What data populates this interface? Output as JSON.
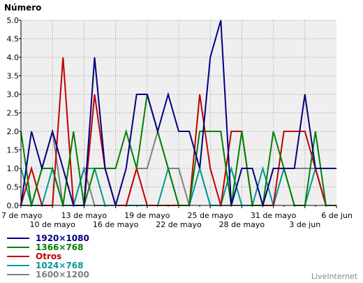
{
  "chart_data": {
    "type": "line",
    "ylabel": "Número",
    "ylim": [
      0,
      5
    ],
    "yticks": [
      "0.0",
      "0.5",
      "1.0",
      "1.5",
      "2.0",
      "2.5",
      "3.0",
      "3.5",
      "4.0",
      "4.5",
      "5.0"
    ],
    "x_day_start": 0,
    "x_day_end": 30,
    "xticks_row1": [
      {
        "day": 0,
        "label": "7 de mayo"
      },
      {
        "day": 6,
        "label": "13 de mayo"
      },
      {
        "day": 12,
        "label": "19 de mayo"
      },
      {
        "day": 18,
        "label": "25 de mayo"
      },
      {
        "day": 24,
        "label": "31 de mayo"
      },
      {
        "day": 30,
        "label": "6 de jun"
      }
    ],
    "xticks_row2": [
      {
        "day": 3,
        "label": "10 de mayo"
      },
      {
        "day": 9,
        "label": "16 de mayo"
      },
      {
        "day": 15,
        "label": "22 de mayo"
      },
      {
        "day": 21,
        "label": "28 de mayo"
      },
      {
        "day": 27,
        "label": "3 de jun"
      }
    ],
    "grid": true,
    "legend_position": "bottom-left",
    "series": [
      {
        "name": "1920×1080",
        "color": "#000080",
        "points": [
          [
            0,
            0
          ],
          [
            1,
            2
          ],
          [
            2,
            1
          ],
          [
            3,
            2
          ],
          [
            4,
            1
          ],
          [
            5,
            0
          ],
          [
            6,
            0
          ],
          [
            7,
            4
          ],
          [
            8,
            1
          ],
          [
            9,
            0
          ],
          [
            10,
            1
          ],
          [
            11,
            3
          ],
          [
            12,
            3
          ],
          [
            13,
            2
          ],
          [
            14,
            3
          ],
          [
            15,
            2
          ],
          [
            16,
            2
          ],
          [
            17,
            1
          ],
          [
            18,
            4
          ],
          [
            19,
            5
          ],
          [
            20,
            0
          ],
          [
            21,
            1
          ],
          [
            22,
            1
          ],
          [
            23,
            0
          ],
          [
            24,
            1
          ],
          [
            25,
            1
          ],
          [
            26,
            1
          ],
          [
            27,
            3
          ],
          [
            28,
            1
          ],
          [
            29,
            1
          ],
          [
            30,
            1
          ]
        ]
      },
      {
        "name": "1366×768",
        "color": "#008000",
        "points": [
          [
            0,
            2
          ],
          [
            1,
            0
          ],
          [
            2,
            1
          ],
          [
            3,
            1
          ],
          [
            4,
            0
          ],
          [
            5,
            2
          ],
          [
            6,
            0
          ],
          [
            7,
            1
          ],
          [
            8,
            1
          ],
          [
            9,
            1
          ],
          [
            10,
            2
          ],
          [
            11,
            1
          ],
          [
            12,
            3
          ],
          [
            13,
            2
          ],
          [
            14,
            1
          ],
          [
            15,
            0
          ],
          [
            16,
            0
          ],
          [
            17,
            2
          ],
          [
            18,
            2
          ],
          [
            19,
            2
          ],
          [
            20,
            0
          ],
          [
            21,
            2
          ],
          [
            22,
            0
          ],
          [
            23,
            0
          ],
          [
            24,
            2
          ],
          [
            25,
            1
          ],
          [
            26,
            0
          ],
          [
            27,
            0
          ],
          [
            28,
            2
          ],
          [
            29,
            0
          ],
          [
            30,
            0
          ]
        ]
      },
      {
        "name": "Otros",
        "color": "#C00000",
        "points": [
          [
            0,
            0
          ],
          [
            1,
            1
          ],
          [
            2,
            0
          ],
          [
            3,
            0
          ],
          [
            4,
            4
          ],
          [
            5,
            0
          ],
          [
            6,
            0
          ],
          [
            7,
            3
          ],
          [
            8,
            1
          ],
          [
            9,
            0
          ],
          [
            10,
            0
          ],
          [
            11,
            1
          ],
          [
            12,
            0
          ],
          [
            13,
            0
          ],
          [
            14,
            0
          ],
          [
            15,
            0
          ],
          [
            16,
            0
          ],
          [
            17,
            3
          ],
          [
            18,
            1
          ],
          [
            19,
            0
          ],
          [
            20,
            2
          ],
          [
            21,
            2
          ],
          [
            22,
            0
          ],
          [
            23,
            0
          ],
          [
            24,
            0
          ],
          [
            25,
            2
          ],
          [
            26,
            2
          ],
          [
            27,
            2
          ],
          [
            28,
            1
          ],
          [
            29,
            0
          ],
          [
            30,
            0
          ]
        ]
      },
      {
        "name": "1024×768",
        "color": "#009999",
        "points": [
          [
            0,
            1
          ],
          [
            1,
            0
          ],
          [
            2,
            0
          ],
          [
            3,
            1
          ],
          [
            4,
            0
          ],
          [
            5,
            0
          ],
          [
            6,
            1
          ],
          [
            7,
            1
          ],
          [
            8,
            0
          ],
          [
            9,
            0
          ],
          [
            10,
            0
          ],
          [
            11,
            0
          ],
          [
            12,
            0
          ],
          [
            13,
            0
          ],
          [
            14,
            1
          ],
          [
            15,
            0
          ],
          [
            16,
            0
          ],
          [
            17,
            1
          ],
          [
            18,
            0
          ],
          [
            19,
            0
          ],
          [
            20,
            1
          ],
          [
            21,
            0
          ],
          [
            22,
            0
          ],
          [
            23,
            1
          ],
          [
            24,
            0
          ],
          [
            25,
            1
          ],
          [
            26,
            0
          ],
          [
            27,
            0
          ],
          [
            28,
            1
          ],
          [
            29,
            0
          ],
          [
            30,
            0
          ]
        ]
      },
      {
        "name": "1600×1200",
        "color": "#808080",
        "points": [
          [
            0,
            0
          ],
          [
            1,
            0
          ],
          [
            2,
            1
          ],
          [
            3,
            2
          ],
          [
            4,
            0
          ],
          [
            5,
            0
          ],
          [
            6,
            1
          ],
          [
            7,
            0
          ],
          [
            8,
            0
          ],
          [
            9,
            0
          ],
          [
            10,
            0
          ],
          [
            11,
            1
          ],
          [
            12,
            1
          ],
          [
            13,
            2
          ],
          [
            14,
            1
          ],
          [
            15,
            1
          ],
          [
            16,
            0
          ],
          [
            17,
            1
          ],
          [
            18,
            0
          ],
          [
            19,
            0
          ],
          [
            20,
            0
          ],
          [
            21,
            0
          ],
          [
            22,
            0
          ],
          [
            23,
            0
          ],
          [
            24,
            0
          ],
          [
            25,
            1
          ],
          [
            26,
            1
          ],
          [
            27,
            1
          ],
          [
            28,
            1
          ],
          [
            29,
            0
          ],
          [
            30,
            0
          ]
        ]
      }
    ]
  },
  "brand": "LiveInternet"
}
